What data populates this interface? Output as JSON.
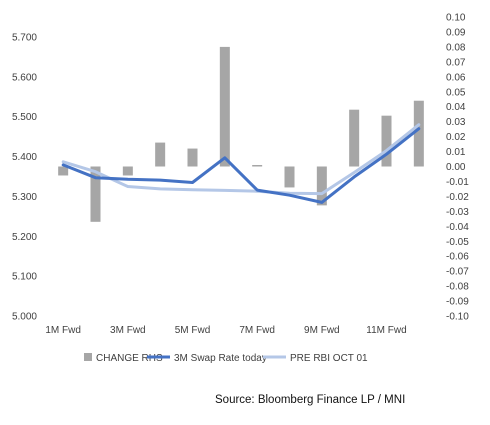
{
  "chart_data": {
    "type": "bar+line",
    "categories": [
      "1M Fwd",
      "2M Fwd",
      "3M Fwd",
      "4M Fwd",
      "5M Fwd",
      "6M Fwd",
      "7M Fwd",
      "8M Fwd",
      "9M Fwd",
      "10M Fwd",
      "11M Fwd",
      "12M Fwd"
    ],
    "x_tick_labels": [
      "1M Fwd",
      "3M Fwd",
      "5M Fwd",
      "7M Fwd",
      "9M Fwd",
      "11M Fwd"
    ],
    "left_axis": {
      "ylim": [
        5.0,
        5.7
      ],
      "ticks": [
        "5.000",
        "5.100",
        "5.200",
        "5.300",
        "5.400",
        "5.500",
        "5.600",
        "5.700"
      ]
    },
    "right_axis": {
      "ylim": [
        -0.1,
        0.1
      ],
      "ticks": [
        "0.10",
        "0.09",
        "0.08",
        "0.07",
        "0.06",
        "0.05",
        "0.04",
        "0.03",
        "0.02",
        "0.01",
        "0.00",
        "-0.01",
        "-0.02",
        "-0.03",
        "-0.04",
        "-0.05",
        "-0.06",
        "-0.07",
        "-0.08",
        "-0.09",
        "-0.10"
      ]
    },
    "series": [
      {
        "name": "CHANGE RHS",
        "type": "bar",
        "axis": "right",
        "color": "#a6a6a6",
        "values": [
          -0.006,
          -0.037,
          -0.006,
          0.016,
          0.012,
          0.08,
          0.001,
          -0.014,
          -0.026,
          0.038,
          0.034,
          0.044
        ]
      },
      {
        "name": "3M Swap Rate today",
        "type": "line",
        "axis": "left",
        "color": "#4472c4",
        "values": [
          5.379,
          5.347,
          5.343,
          5.341,
          5.335,
          5.397,
          5.316,
          5.303,
          5.285,
          5.349,
          5.406,
          5.47
        ]
      },
      {
        "name": "PRE RBI  OCT 01",
        "type": "line",
        "axis": "left",
        "color": "#b4c7e7",
        "values": [
          5.387,
          5.362,
          5.325,
          5.319,
          5.317,
          5.315,
          5.313,
          5.308,
          5.307,
          5.36,
          5.415,
          5.48
        ]
      }
    ],
    "legend_position": "bottom"
  },
  "source": "Source: Bloomberg Finance LP  /  MNI"
}
